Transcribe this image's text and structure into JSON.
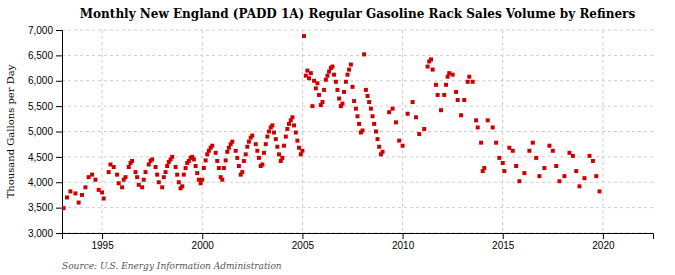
{
  "chart_data": {
    "type": "scatter",
    "title": "Monthly New England (PADD 1A) Regular Gasoline Rack Sales Volume by Refiners",
    "y_label": "Thousand Gallons per Day",
    "annotation": "Source: U.S. Energy Information Administration",
    "color": "#cc0000",
    "marker": "square",
    "grid": true,
    "xlim": [
      1993.0,
      2022.5
    ],
    "xticks": [
      1995,
      2000,
      2005,
      2010,
      2015,
      2020
    ],
    "ylim": [
      3000,
      7000
    ],
    "yticks": [
      {
        "value": 3000,
        "label": "3,000"
      },
      {
        "value": 3500,
        "label": "3,500"
      },
      {
        "value": 4000,
        "label": "4,000"
      },
      {
        "value": 4500,
        "label": "4,500"
      },
      {
        "value": 5000,
        "label": "5,000"
      },
      {
        "value": 5500,
        "label": "5,500"
      },
      {
        "value": 6000,
        "label": "6,000"
      },
      {
        "value": 6500,
        "label": "6,500"
      },
      {
        "value": 7000,
        "label": "7,000"
      }
    ],
    "x": [
      1993.08,
      1993.25,
      1993.42,
      1993.67,
      1993.83,
      1994.0,
      1994.17,
      1994.33,
      1994.5,
      1994.67,
      1994.83,
      1995.0,
      1995.08,
      1995.33,
      1995.42,
      1995.58,
      1995.75,
      1995.83,
      1996.0,
      1996.08,
      1996.17,
      1996.33,
      1996.42,
      1996.5,
      1996.67,
      1996.75,
      1996.83,
      1997.0,
      1997.08,
      1997.17,
      1997.33,
      1997.42,
      1997.5,
      1997.67,
      1997.75,
      1997.83,
      1998.0,
      1998.08,
      1998.17,
      1998.25,
      1998.33,
      1998.42,
      1998.5,
      1998.67,
      1998.75,
      1998.83,
      1998.92,
      1999.0,
      1999.08,
      1999.17,
      1999.25,
      1999.33,
      1999.42,
      1999.5,
      1999.58,
      1999.67,
      1999.75,
      1999.83,
      1999.92,
      2000.0,
      2000.08,
      2000.17,
      2000.25,
      2000.33,
      2000.42,
      2000.5,
      2000.67,
      2000.75,
      2000.83,
      2000.92,
      2001.0,
      2001.08,
      2001.17,
      2001.25,
      2001.33,
      2001.42,
      2001.5,
      2001.67,
      2001.75,
      2001.83,
      2001.92,
      2002.0,
      2002.08,
      2002.17,
      2002.25,
      2002.33,
      2002.42,
      2002.5,
      2002.67,
      2002.75,
      2002.83,
      2002.92,
      2003.0,
      2003.08,
      2003.17,
      2003.25,
      2003.33,
      2003.42,
      2003.5,
      2003.58,
      2003.67,
      2003.75,
      2003.83,
      2003.92,
      2004.0,
      2004.08,
      2004.17,
      2004.25,
      2004.33,
      2004.42,
      2004.5,
      2004.58,
      2004.67,
      2004.75,
      2004.83,
      2004.92,
      2005.0,
      2005.08,
      2005.17,
      2005.25,
      2005.33,
      2005.42,
      2005.5,
      2005.58,
      2005.67,
      2005.75,
      2005.83,
      2005.92,
      2006.0,
      2006.08,
      2006.17,
      2006.25,
      2006.33,
      2006.42,
      2006.5,
      2006.58,
      2006.67,
      2006.75,
      2006.83,
      2006.92,
      2007.0,
      2007.08,
      2007.17,
      2007.25,
      2007.33,
      2007.42,
      2007.5,
      2007.58,
      2007.67,
      2007.75,
      2007.83,
      2007.92,
      2008.0,
      2008.08,
      2008.17,
      2008.25,
      2008.33,
      2008.42,
      2008.5,
      2008.58,
      2008.67,
      2008.75,
      2008.83,
      2008.92,
      2009.0,
      2009.33,
      2009.5,
      2009.67,
      2009.83,
      2010.0,
      2010.25,
      2010.5,
      2010.67,
      2010.83,
      2011.08,
      2011.25,
      2011.33,
      2011.42,
      2011.5,
      2011.67,
      2011.75,
      2011.92,
      2012.08,
      2012.17,
      2012.25,
      2012.33,
      2012.5,
      2012.67,
      2012.75,
      2012.92,
      2013.08,
      2013.25,
      2013.33,
      2013.5,
      2013.67,
      2013.75,
      2013.92,
      2014.0,
      2014.08,
      2014.25,
      2014.5,
      2014.67,
      2014.83,
      2015.0,
      2015.08,
      2015.33,
      2015.5,
      2015.67,
      2015.83,
      2016.08,
      2016.33,
      2016.5,
      2016.67,
      2016.83,
      2017.08,
      2017.33,
      2017.5,
      2017.67,
      2017.83,
      2018.08,
      2018.33,
      2018.5,
      2018.67,
      2018.83,
      2019.08,
      2019.33,
      2019.5,
      2019.67,
      2019.83
    ],
    "values": [
      3490,
      3700,
      3820,
      3780,
      3600,
      3750,
      3900,
      4100,
      4150,
      4050,
      3850,
      3800,
      3680,
      4200,
      4350,
      4300,
      4150,
      3980,
      3900,
      4050,
      4100,
      4300,
      4380,
      4420,
      4200,
      4100,
      3950,
      3900,
      4050,
      4200,
      4350,
      4420,
      4450,
      4300,
      4150,
      4000,
      3900,
      4100,
      4200,
      4320,
      4400,
      4450,
      4500,
      4300,
      4150,
      4000,
      3880,
      3920,
      4150,
      4280,
      4380,
      4420,
      4480,
      4500,
      4450,
      4320,
      4180,
      4050,
      3980,
      4050,
      4280,
      4430,
      4550,
      4620,
      4680,
      4720,
      4580,
      4420,
      4280,
      4100,
      4050,
      4280,
      4430,
      4600,
      4680,
      4750,
      4800,
      4620,
      4480,
      4320,
      4150,
      4200,
      4420,
      4550,
      4700,
      4800,
      4880,
      4920,
      4750,
      4620,
      4480,
      4320,
      4350,
      4580,
      4750,
      4900,
      5000,
      5080,
      5120,
      4980,
      4850,
      4700,
      4550,
      4420,
      4480,
      4720,
      4900,
      5050,
      5150,
      5220,
      5280,
      5120,
      4980,
      4820,
      4680,
      4550,
      4620,
      6880,
      6100,
      6200,
      6050,
      6150,
      5500,
      6000,
      5850,
      5950,
      5720,
      5520,
      5580,
      5820,
      6020,
      6100,
      6180,
      6250,
      6280,
      6120,
      5980,
      5820,
      5650,
      5500,
      5550,
      5780,
      5980,
      6120,
      6220,
      6320,
      5880,
      5600,
      5450,
      5300,
      5150,
      4980,
      5020,
      6520,
      5820,
      5700,
      5580,
      5450,
      5300,
      5150,
      5000,
      4850,
      4700,
      4550,
      4600,
      5380,
      5450,
      5180,
      4820,
      4720,
      5350,
      5580,
      5280,
      4950,
      5050,
      6280,
      6380,
      6420,
      6220,
      5920,
      5720,
      5420,
      5720,
      5920,
      6080,
      6150,
      6120,
      5780,
      5620,
      5320,
      5620,
      5980,
      6080,
      5980,
      5220,
      5080,
      4780,
      4220,
      4280,
      5220,
      5080,
      4780,
      4480,
      4380,
      4220,
      4680,
      4620,
      4320,
      4020,
      4180,
      4620,
      4780,
      4480,
      4120,
      4280,
      4720,
      4620,
      4320,
      4020,
      4120,
      4580,
      4520,
      4220,
      3920,
      4080,
      4520,
      4420,
      4120,
      3820
    ]
  }
}
